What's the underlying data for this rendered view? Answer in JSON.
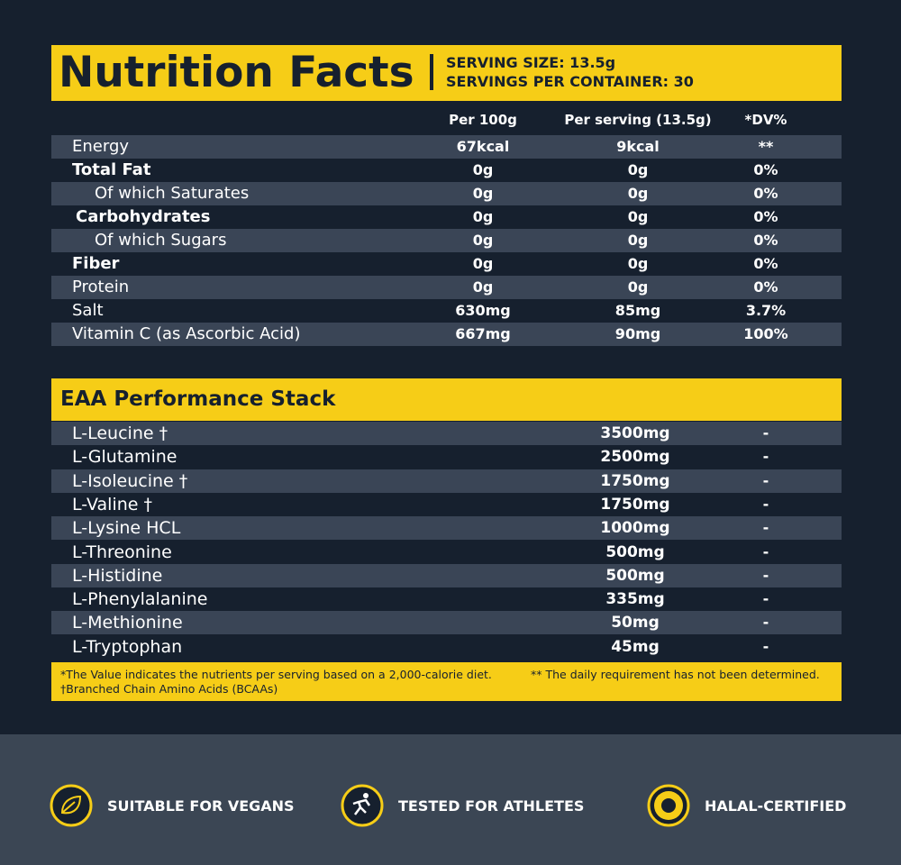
{
  "header": {
    "title": "Nutrition Facts",
    "serving_size": "SERVING SIZE: 13.5g",
    "servings_per_container": "SERVINGS PER CONTAINER: 30"
  },
  "nutrition": {
    "columns": [
      "Per 100g",
      "Per serving (13.5g)",
      "*DV%"
    ],
    "rows": [
      [
        "Energy",
        "67kcal",
        "9kcal",
        "**"
      ],
      [
        "Total Fat",
        "0g",
        "0g",
        "0%"
      ],
      [
        "Of which Saturates",
        "0g",
        "0g",
        "0%"
      ],
      [
        "Carbohydrates",
        "0g",
        "0g",
        "0%"
      ],
      [
        "Of which Sugars",
        "0g",
        "0g",
        "0%"
      ],
      [
        "Fiber",
        "0g",
        "0g",
        "0%"
      ],
      [
        "Protein",
        "0g",
        "0g",
        "0%"
      ],
      [
        "Salt",
        "630mg",
        "85mg",
        "3.7%"
      ],
      [
        "Vitamin C (as Ascorbic Acid)",
        "667mg",
        "90mg",
        "100%"
      ]
    ]
  },
  "stack": {
    "title": "EAA Performance Stack",
    "rows": [
      [
        "L-Leucine †",
        "3500mg",
        "-"
      ],
      [
        "L-Glutamine",
        "2500mg",
        "-"
      ],
      [
        "L-Isoleucine †",
        "1750mg",
        "-"
      ],
      [
        "L-Valine †",
        "1750mg",
        "-"
      ],
      [
        "L-Lysine HCL",
        "1000mg",
        "-"
      ],
      [
        "L-Threonine",
        "500mg",
        "-"
      ],
      [
        "L-Histidine",
        "500mg",
        "-"
      ],
      [
        "L-Phenylalanine",
        "335mg",
        "-"
      ],
      [
        "L-Methionine",
        "50mg",
        "-"
      ],
      [
        "L-Tryptophan",
        "45mg",
        "-"
      ]
    ]
  },
  "footnotes": [
    "*The Value indicates the nutrients per serving based on a 2,000-calorie diet.",
    "** The daily requirement has not been determined.",
    "†Branched Chain Amino Acids (BCAAs)"
  ],
  "badges": [
    "SUITABLE FOR VEGANS",
    "TESTED FOR ATHLETES",
    "HALAL-CERTIFIED"
  ]
}
